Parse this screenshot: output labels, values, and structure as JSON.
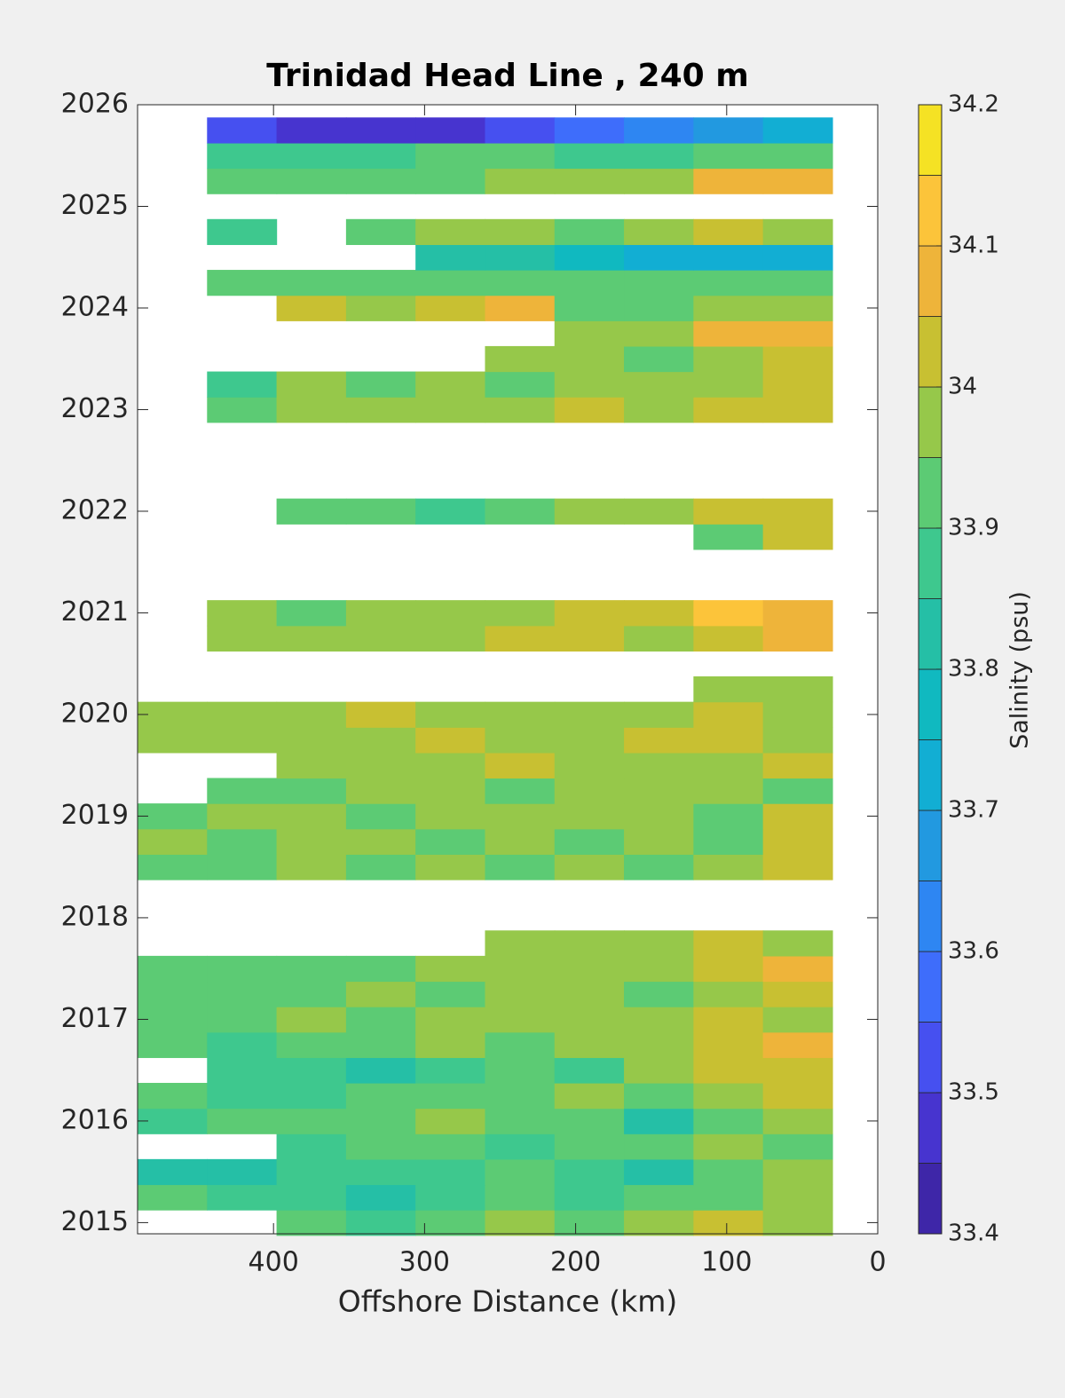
{
  "chart_data": {
    "type": "contour",
    "title": "Trinidad Head Line , 240 m",
    "xlabel": "Offshore Distance (km)",
    "xlim": [
      490,
      0
    ],
    "xticks": [
      400,
      300,
      200,
      100,
      0
    ],
    "ylim": [
      2014.89,
      2026
    ],
    "yticks": [
      2015,
      2016,
      2017,
      2018,
      2019,
      2020,
      2021,
      2022,
      2023,
      2024,
      2025,
      2026
    ],
    "x": [
      467,
      421,
      375,
      329,
      283,
      237,
      191,
      145,
      99,
      53
    ],
    "y": [
      2015,
      2015.25,
      2015.5,
      2015.75,
      2016,
      2016.25,
      2016.5,
      2016.75,
      2017,
      2017.25,
      2017.5,
      2017.75,
      2018,
      2018.25,
      2018.5,
      2018.75,
      2019,
      2019.25,
      2019.5,
      2019.75,
      2020,
      2020.25,
      2020.5,
      2020.75,
      2021,
      2021.25,
      2021.5,
      2021.75,
      2022,
      2022.25,
      2022.5,
      2022.75,
      2023,
      2023.25,
      2023.5,
      2023.75,
      2024,
      2024.25,
      2024.5,
      2024.75,
      2025,
      2025.25,
      2025.5,
      2025.75
    ],
    "z": [
      [
        null,
        null,
        33.92,
        33.87,
        33.92,
        33.97,
        33.92,
        33.97,
        34.02,
        33.97
      ],
      [
        33.92,
        33.87,
        33.87,
        33.82,
        33.87,
        33.92,
        33.87,
        33.92,
        33.92,
        33.97
      ],
      [
        33.82,
        33.82,
        33.87,
        33.87,
        33.87,
        33.92,
        33.87,
        33.82,
        33.92,
        33.97
      ],
      [
        null,
        null,
        33.87,
        33.92,
        33.92,
        33.87,
        33.92,
        33.92,
        33.97,
        33.92
      ],
      [
        33.87,
        33.92,
        33.92,
        33.92,
        33.97,
        33.92,
        33.92,
        33.82,
        33.92,
        33.97
      ],
      [
        33.92,
        33.87,
        33.87,
        33.92,
        33.92,
        33.92,
        33.97,
        33.92,
        33.97,
        34.02
      ],
      [
        null,
        33.87,
        33.87,
        33.82,
        33.87,
        33.92,
        33.87,
        33.97,
        34.02,
        34.02
      ],
      [
        33.92,
        33.87,
        33.92,
        33.92,
        33.97,
        33.92,
        33.97,
        33.97,
        34.02,
        34.07
      ],
      [
        33.92,
        33.92,
        33.97,
        33.92,
        33.97,
        33.97,
        33.97,
        33.97,
        34.02,
        33.97
      ],
      [
        33.92,
        33.92,
        33.92,
        33.97,
        33.92,
        33.97,
        33.97,
        33.92,
        33.97,
        34.02
      ],
      [
        33.92,
        33.92,
        33.92,
        33.92,
        33.97,
        33.97,
        33.97,
        33.97,
        34.02,
        34.07
      ],
      [
        null,
        null,
        null,
        null,
        null,
        33.97,
        33.97,
        33.97,
        34.02,
        33.97
      ],
      [
        null,
        null,
        null,
        null,
        null,
        null,
        null,
        null,
        null,
        null
      ],
      [
        null,
        null,
        null,
        null,
        null,
        null,
        null,
        null,
        null,
        null
      ],
      [
        33.92,
        33.92,
        33.97,
        33.92,
        33.97,
        33.92,
        33.97,
        33.92,
        33.97,
        34.02
      ],
      [
        33.97,
        33.92,
        33.97,
        33.97,
        33.92,
        33.97,
        33.92,
        33.97,
        33.92,
        34.02
      ],
      [
        33.92,
        33.97,
        33.97,
        33.92,
        33.97,
        33.97,
        33.97,
        33.97,
        33.92,
        34.02
      ],
      [
        null,
        33.92,
        33.92,
        33.97,
        33.97,
        33.92,
        33.97,
        33.97,
        33.97,
        33.92
      ],
      [
        null,
        null,
        33.97,
        33.97,
        33.97,
        34.02,
        33.97,
        33.97,
        33.97,
        34.02
      ],
      [
        33.97,
        33.97,
        33.97,
        33.97,
        34.02,
        33.97,
        33.97,
        34.02,
        34.02,
        33.97
      ],
      [
        33.97,
        33.97,
        33.97,
        34.02,
        33.97,
        33.97,
        33.97,
        33.97,
        34.02,
        33.97
      ],
      [
        null,
        null,
        null,
        null,
        null,
        null,
        null,
        null,
        33.97,
        33.97
      ],
      [
        null,
        null,
        null,
        null,
        null,
        null,
        null,
        null,
        null,
        null
      ],
      [
        null,
        33.97,
        33.97,
        33.97,
        33.97,
        34.02,
        34.02,
        33.97,
        34.02,
        34.07
      ],
      [
        null,
        33.97,
        33.92,
        33.97,
        33.97,
        33.97,
        34.02,
        34.02,
        34.12,
        34.07
      ],
      [
        null,
        null,
        null,
        null,
        null,
        null,
        null,
        null,
        null,
        null
      ],
      [
        null,
        null,
        null,
        null,
        null,
        null,
        null,
        null,
        null,
        null
      ],
      [
        null,
        null,
        null,
        null,
        null,
        null,
        null,
        null,
        33.92,
        34.02
      ],
      [
        null,
        null,
        33.92,
        33.92,
        33.87,
        33.92,
        33.97,
        33.97,
        34.02,
        34.02
      ],
      [
        null,
        null,
        null,
        null,
        null,
        null,
        null,
        null,
        null,
        null
      ],
      [
        null,
        null,
        null,
        null,
        null,
        null,
        null,
        null,
        null,
        null
      ],
      [
        null,
        null,
        null,
        null,
        null,
        null,
        null,
        null,
        null,
        null
      ],
      [
        null,
        33.92,
        33.97,
        33.97,
        33.97,
        33.97,
        34.02,
        33.97,
        34.02,
        34.02
      ],
      [
        null,
        33.87,
        33.97,
        33.92,
        33.97,
        33.92,
        33.97,
        33.97,
        33.97,
        34.02
      ],
      [
        null,
        null,
        null,
        null,
        null,
        33.97,
        33.97,
        33.92,
        33.97,
        34.02
      ],
      [
        null,
        null,
        null,
        null,
        null,
        null,
        33.97,
        33.97,
        34.07,
        34.07
      ],
      [
        null,
        null,
        34.02,
        33.97,
        34.02,
        34.07,
        33.92,
        33.92,
        33.97,
        33.97
      ],
      [
        null,
        33.92,
        33.92,
        33.92,
        33.92,
        33.92,
        33.92,
        33.92,
        33.92,
        33.92
      ],
      [
        null,
        null,
        null,
        null,
        33.82,
        33.82,
        33.77,
        33.72,
        33.72,
        33.72
      ],
      [
        null,
        33.87,
        null,
        33.92,
        33.97,
        33.97,
        33.92,
        33.97,
        34.02,
        33.97
      ],
      [
        null,
        null,
        null,
        null,
        null,
        null,
        null,
        null,
        null,
        null
      ],
      [
        null,
        33.92,
        33.92,
        33.92,
        33.92,
        33.97,
        33.97,
        33.97,
        34.07,
        34.07
      ],
      [
        null,
        33.87,
        33.87,
        33.87,
        33.92,
        33.92,
        33.87,
        33.87,
        33.92,
        33.92
      ],
      [
        null,
        33.52,
        33.47,
        33.47,
        33.47,
        33.52,
        33.57,
        33.62,
        33.67,
        33.72
      ]
    ],
    "colorbar": {
      "label": "Salinity (psu)",
      "levels": [
        33.4,
        33.45,
        33.5,
        33.55,
        33.6,
        33.65,
        33.7,
        33.75,
        33.8,
        33.85,
        33.9,
        33.95,
        34,
        34.05,
        34.1,
        34.15,
        34.2
      ],
      "colors": [
        "#3e26a8",
        "#4734cf",
        "#4650f0",
        "#3e6dfb",
        "#2e86f2",
        "#2299e0",
        "#12aed3",
        "#10b9c0",
        "#25bfa6",
        "#3ec88e",
        "#5ccb74",
        "#96c84a",
        "#c8c032",
        "#eeb43a",
        "#fcc43a",
        "#f5e224"
      ],
      "ticks": [
        33.4,
        33.5,
        33.6,
        33.7,
        33.8,
        33.9,
        34,
        34.1,
        34.2
      ]
    }
  }
}
